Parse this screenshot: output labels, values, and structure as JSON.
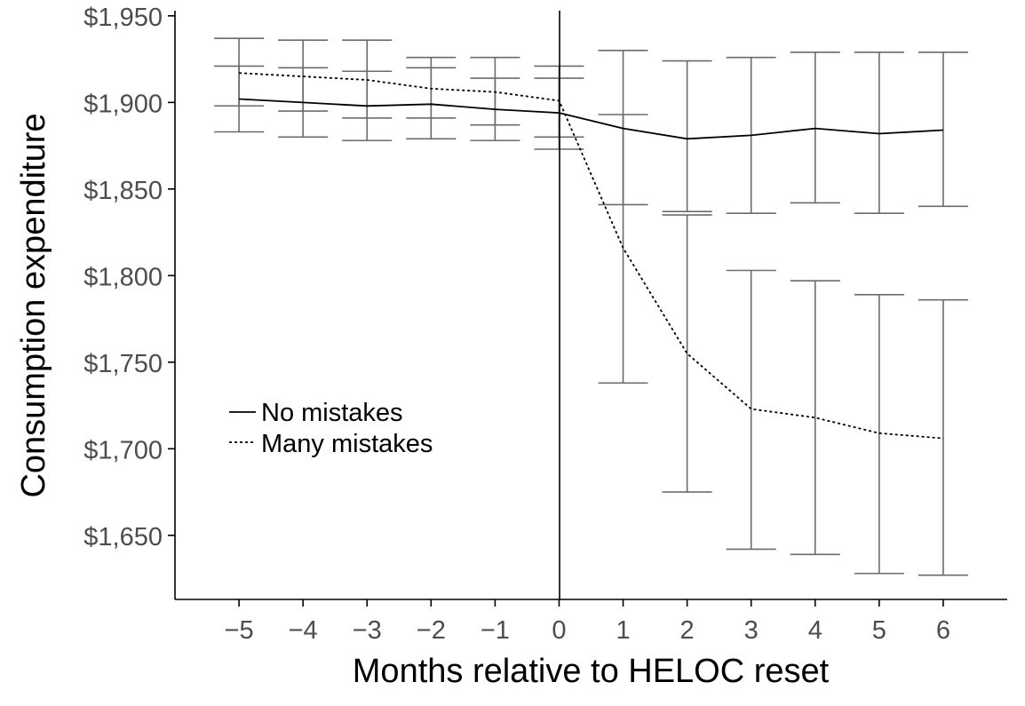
{
  "chart_data": {
    "type": "line",
    "title": "",
    "xlabel": "Months relative to HELOC reset",
    "ylabel": "Consumption expenditure",
    "x": [
      -5,
      -4,
      -3,
      -2,
      -1,
      0,
      1,
      2,
      3,
      4,
      5,
      6
    ],
    "x_tick_labels": [
      "−5",
      "−4",
      "−3",
      "−2",
      "−1",
      "0",
      "1",
      "2",
      "3",
      "4",
      "5",
      "6"
    ],
    "xlim": [
      -6,
      7
    ],
    "ylim": [
      1613,
      1953
    ],
    "y_ticks": [
      1650,
      1700,
      1750,
      1800,
      1850,
      1900,
      1950
    ],
    "y_tick_labels": [
      "$1,650",
      "$1,700",
      "$1,750",
      "$1,800",
      "$1,850",
      "$1,900",
      "$1,950"
    ],
    "reference_line_x": 0,
    "grid": false,
    "legend_position": "lower-left",
    "error_bar_color": "#6b6b6b",
    "series": [
      {
        "name": "No mistakes",
        "style": "solid",
        "values": [
          1902,
          1900,
          1898,
          1899,
          1896,
          1894,
          1885,
          1879,
          1881,
          1885,
          1882,
          1884
        ],
        "lower": [
          1883,
          1880,
          1878,
          1879,
          1878,
          1880,
          1841,
          1837,
          1836,
          1842,
          1836,
          1840
        ],
        "upper": [
          1921,
          1920,
          1918,
          1920,
          1914,
          1914,
          1930,
          1924,
          1926,
          1929,
          1929,
          1929
        ]
      },
      {
        "name": "Many mistakes",
        "style": "dotted",
        "values": [
          1917,
          1915,
          1913,
          1908,
          1906,
          1901,
          1816,
          1755,
          1723,
          1718,
          1709,
          1706
        ],
        "lower": [
          1898,
          1895,
          1891,
          1891,
          1887,
          1873,
          1738,
          1675,
          1642,
          1639,
          1628,
          1627
        ],
        "upper": [
          1937,
          1936,
          1936,
          1926,
          1926,
          1921,
          1893,
          1835,
          1803,
          1797,
          1789,
          1786
        ]
      }
    ]
  }
}
